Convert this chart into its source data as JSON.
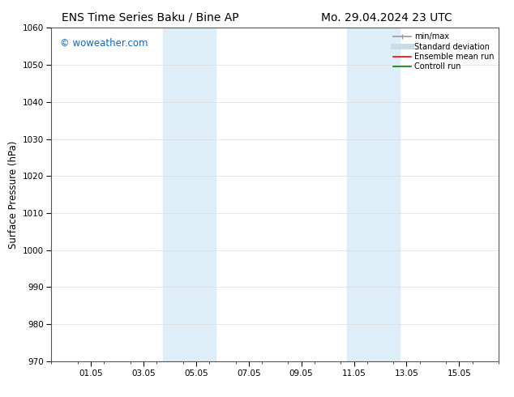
{
  "title_left": "ENS Time Series Baku / Bine AP",
  "title_right": "Mo. 29.04.2024 23 UTC",
  "ylabel": "Surface Pressure (hPa)",
  "ylim": [
    970,
    1060
  ],
  "yticks": [
    970,
    980,
    990,
    1000,
    1010,
    1020,
    1030,
    1040,
    1050,
    1060
  ],
  "xlim": [
    -0.5,
    16.5
  ],
  "xtick_labels": [
    "01.05",
    "03.05",
    "05.05",
    "07.05",
    "09.05",
    "11.05",
    "13.05",
    "15.05"
  ],
  "xtick_positions": [
    1,
    3,
    5,
    7,
    9,
    11,
    13,
    15
  ],
  "shaded_regions": [
    {
      "x_start": 3.75,
      "x_end": 5.75
    },
    {
      "x_start": 10.75,
      "x_end": 12.75
    }
  ],
  "shaded_color": "#ddeef8",
  "background_color": "#ffffff",
  "watermark_text": "© woweather.com",
  "watermark_color": "#1565c0",
  "legend_labels": [
    "min/max",
    "Standard deviation",
    "Ensemble mean run",
    "Controll run"
  ],
  "legend_colors": [
    "#999999",
    "#c8dce8",
    "#ff0000",
    "#008000"
  ],
  "legend_lws": [
    1.2,
    5,
    1.2,
    1.2
  ],
  "title_fontsize": 10,
  "tick_fontsize": 7.5,
  "ylabel_fontsize": 8.5,
  "watermark_fontsize": 8.5,
  "legend_fontsize": 7
}
